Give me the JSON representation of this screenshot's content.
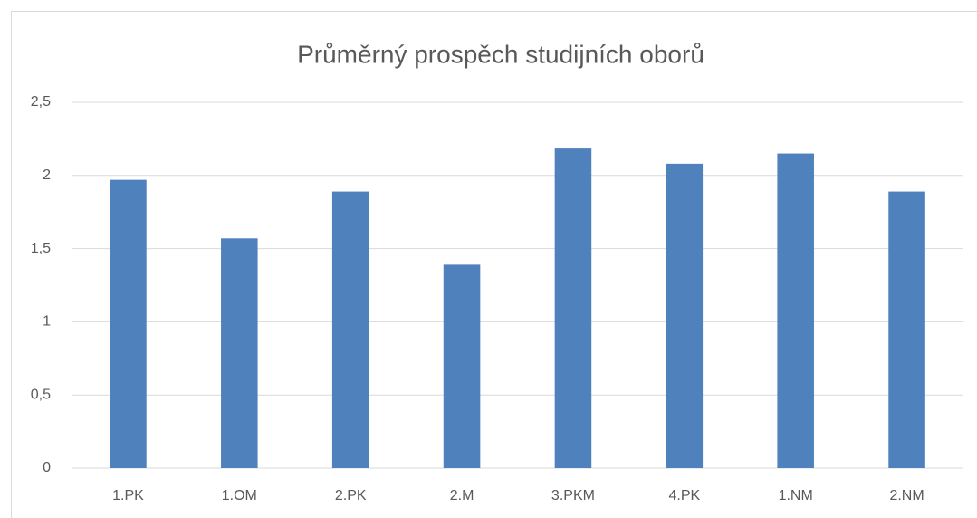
{
  "chart_data": {
    "type": "bar",
    "title": "Průměrný prospěch studijních oborů",
    "categories": [
      "1.PK",
      "1.OM",
      "2.PK",
      "2.M",
      "3.PKM",
      "4.PK",
      "1.NM",
      "2.NM"
    ],
    "values": [
      1.97,
      1.57,
      1.89,
      1.39,
      2.19,
      2.08,
      2.15,
      1.89
    ],
    "color": "#4f81bd",
    "ylim": [
      0,
      2.5
    ],
    "yticks": [
      0,
      {
        "value": 0.5,
        "label": "0,5"
      },
      1,
      {
        "value": 1.5,
        "label": "1,5"
      },
      2,
      {
        "value": 2.5,
        "label": "2,5"
      }
    ],
    "grid": true
  }
}
